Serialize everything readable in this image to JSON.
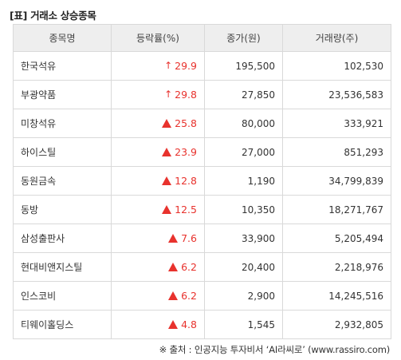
{
  "title": "[표] 거래소 상승종목",
  "columns": [
    "종목명",
    "등락률(%)",
    "종가(원)",
    "거래량(주)"
  ],
  "rows": [
    {
      "name": "한국석유",
      "marker": "arrow",
      "rate": "29.9",
      "price": "195,500",
      "volume": "102,530"
    },
    {
      "name": "부광약품",
      "marker": "arrow",
      "rate": "29.8",
      "price": "27,850",
      "volume": "23,536,583"
    },
    {
      "name": "미창석유",
      "marker": "triangle",
      "rate": "25.8",
      "price": "80,000",
      "volume": "333,921"
    },
    {
      "name": "하이스틸",
      "marker": "triangle",
      "rate": "23.9",
      "price": "27,000",
      "volume": "851,293"
    },
    {
      "name": "동원금속",
      "marker": "triangle",
      "rate": "12.8",
      "price": "1,190",
      "volume": "34,799,839"
    },
    {
      "name": "동방",
      "marker": "triangle",
      "rate": "12.5",
      "price": "10,350",
      "volume": "18,271,767"
    },
    {
      "name": "삼성출판사",
      "marker": "triangle",
      "rate": "7.6",
      "price": "33,900",
      "volume": "5,205,494"
    },
    {
      "name": "현대비앤지스틸",
      "marker": "triangle",
      "rate": "6.2",
      "price": "20,400",
      "volume": "2,218,976"
    },
    {
      "name": "인스코비",
      "marker": "triangle",
      "rate": "6.2",
      "price": "2,900",
      "volume": "14,245,516"
    },
    {
      "name": "티웨이홀딩스",
      "marker": "triangle",
      "rate": "4.8",
      "price": "1,545",
      "volume": "2,932,805"
    }
  ],
  "colors": {
    "up": "#e8322d",
    "header_bg": "#eeeeee",
    "border": "#d9d9d9"
  },
  "source": "※ 출처 : 인공지능 투자비서 ‘AI라씨로’ (www.rassiro.com)"
}
